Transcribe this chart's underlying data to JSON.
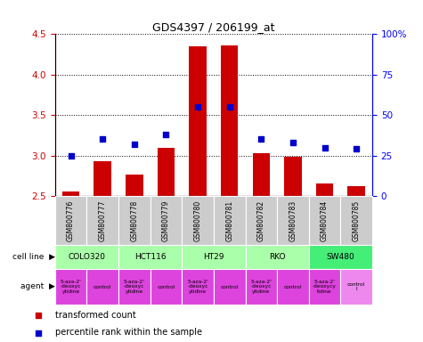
{
  "title": "GDS4397 / 206199_at",
  "samples": [
    "GSM800776",
    "GSM800777",
    "GSM800778",
    "GSM800779",
    "GSM800780",
    "GSM800781",
    "GSM800782",
    "GSM800783",
    "GSM800784",
    "GSM800785"
  ],
  "transformed_counts": [
    2.55,
    2.93,
    2.76,
    3.09,
    4.35,
    4.36,
    3.03,
    2.98,
    2.65,
    2.62
  ],
  "percentile_ranks": [
    25,
    35,
    32,
    38,
    55,
    55,
    35,
    33,
    30,
    29
  ],
  "bar_color": "#cc0000",
  "dot_color": "#0000cc",
  "ylim_left": [
    2.5,
    4.5
  ],
  "ylim_right": [
    0,
    100
  ],
  "yticks_left": [
    2.5,
    3.0,
    3.5,
    4.0,
    4.5
  ],
  "yticks_right": [
    0,
    25,
    50,
    75,
    100
  ],
  "ytick_labels_right": [
    "0",
    "25",
    "50",
    "75",
    "100%"
  ],
  "cell_lines": [
    {
      "name": "COLO320",
      "start": 0,
      "end": 2,
      "color": "#aaffaa"
    },
    {
      "name": "HCT116",
      "start": 2,
      "end": 4,
      "color": "#aaffaa"
    },
    {
      "name": "HT29",
      "start": 4,
      "end": 6,
      "color": "#aaffaa"
    },
    {
      "name": "RKO",
      "start": 6,
      "end": 8,
      "color": "#aaffaa"
    },
    {
      "name": "SW480",
      "start": 8,
      "end": 10,
      "color": "#44ee77"
    }
  ],
  "agent_texts": [
    "5-aza-2'\n-deoxyc\nytidine",
    "control",
    "5-aza-2'\n-deoxyc\nytidine",
    "control",
    "5-aza-2'\n-deoxyc\nytidine",
    "control",
    "5-aza-2'\n-deoxyc\nytidine",
    "control",
    "5-aza-2'\n-deoxycy\ntidine",
    "control\nl"
  ],
  "agent_colors": [
    "#dd44dd",
    "#dd44dd",
    "#dd44dd",
    "#dd44dd",
    "#dd44dd",
    "#dd44dd",
    "#dd44dd",
    "#dd44dd",
    "#dd44dd",
    "#ee88ee"
  ],
  "legend_transformed": "transformed count",
  "legend_percentile": "percentile rank within the sample",
  "bar_bottom": 2.5,
  "sample_box_color": "#cccccc",
  "bar_width": 0.55
}
